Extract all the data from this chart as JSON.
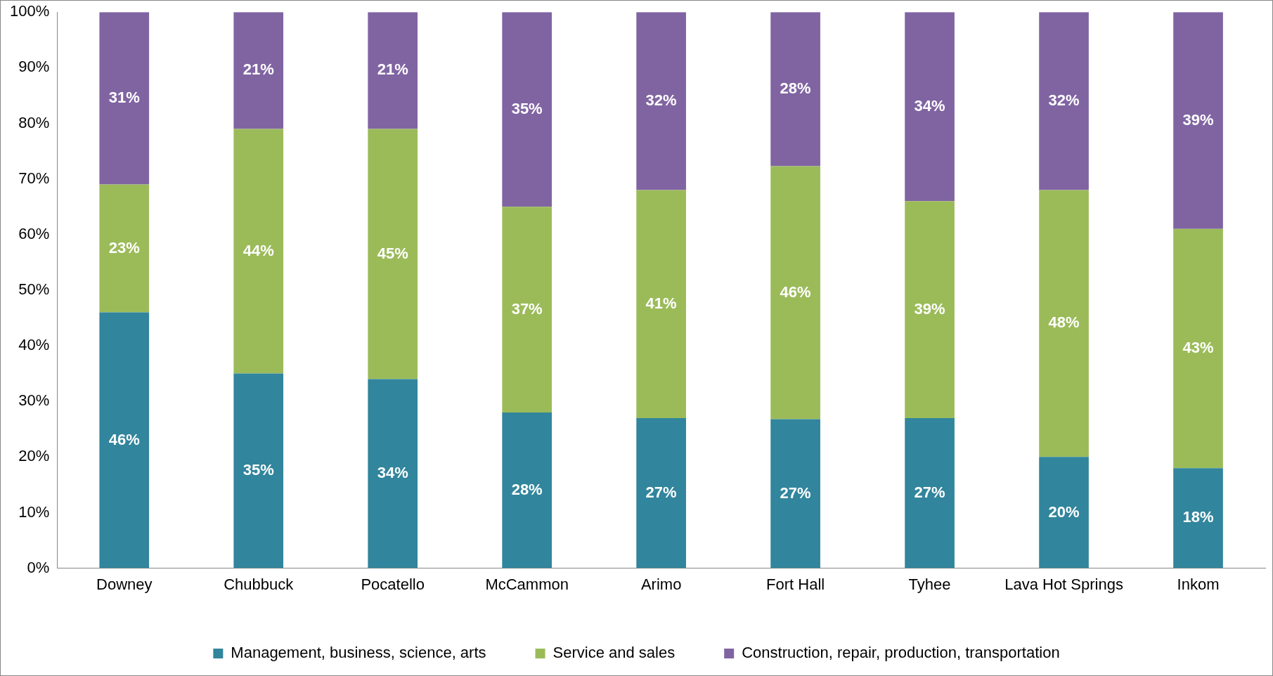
{
  "chart_data": {
    "type": "bar",
    "stacked": true,
    "categories": [
      "Downey",
      "Chubbuck",
      "Pocatello",
      "McCammon",
      "Arimo",
      "Fort Hall",
      "Tyhee",
      "Lava Hot Springs",
      "Inkom"
    ],
    "series": [
      {
        "name": "Management, business, science, arts",
        "color": "#31859c",
        "values": [
          46,
          35,
          34,
          28,
          27,
          26.8,
          27,
          20,
          18
        ],
        "value_labels": [
          "46%",
          "35%",
          "34%",
          "28%",
          "27%",
          "27%",
          "27%",
          "20%",
          "18%"
        ]
      },
      {
        "name": "Service and sales",
        "color": "#9bbb59",
        "values": [
          23,
          44,
          45,
          37,
          41,
          45.5,
          39,
          48,
          43
        ],
        "value_labels": [
          "23%",
          "44%",
          "45%",
          "37%",
          "41%",
          "46%",
          "39%",
          "48%",
          "43%"
        ]
      },
      {
        "name": "Construction, repair, production, transportation",
        "color": "#8064a2",
        "values": [
          31,
          21,
          21,
          35,
          32,
          27.7,
          34,
          32,
          39
        ],
        "value_labels": [
          "31%",
          "21%",
          "21%",
          "35%",
          "32%",
          "28%",
          "34%",
          "32%",
          "39%"
        ]
      }
    ],
    "ylim": [
      0,
      100
    ],
    "yticks": [
      {
        "value": 0,
        "label": "0%"
      },
      {
        "value": 10,
        "label": "10%"
      },
      {
        "value": 20,
        "label": "20%"
      },
      {
        "value": 30,
        "label": "30%"
      },
      {
        "value": 40,
        "label": "40%"
      },
      {
        "value": 50,
        "label": "50%"
      },
      {
        "value": 60,
        "label": "60%"
      },
      {
        "value": 70,
        "label": "70%"
      },
      {
        "value": 80,
        "label": "80%"
      },
      {
        "value": 90,
        "label": "90%"
      },
      {
        "value": 100,
        "label": "100%"
      }
    ],
    "grid": false,
    "legend": "bottom"
  }
}
